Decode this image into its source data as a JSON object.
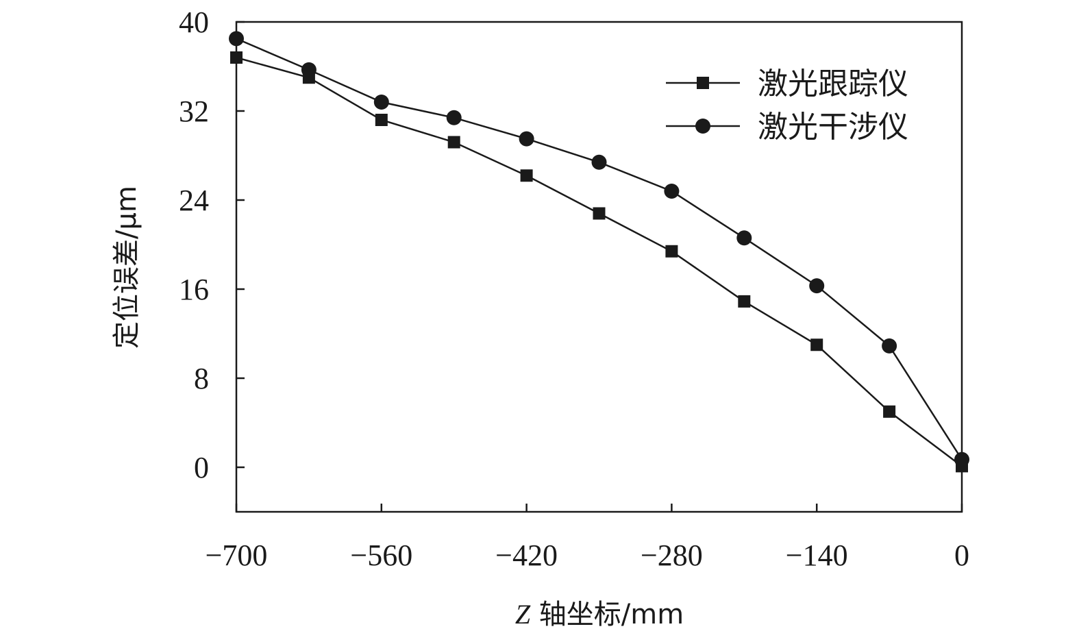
{
  "chart_data": {
    "type": "line",
    "title": "",
    "xlabel": {
      "prefix": "Z",
      "text": " 轴坐标/mm"
    },
    "ylabel": "定位误差/μm",
    "xlim": [
      -700,
      0
    ],
    "ylim": [
      -4,
      40
    ],
    "xticks": [
      -700,
      -560,
      -420,
      -280,
      -140,
      0
    ],
    "xtick_labels": [
      "−700",
      "−560",
      "−420",
      "−280",
      "−140",
      "0"
    ],
    "yticks": [
      0,
      8,
      16,
      24,
      32,
      40
    ],
    "ytick_labels": [
      "0",
      "8",
      "16",
      "24",
      "32",
      "40"
    ],
    "grid": false,
    "legend_position": "top-right",
    "x": [
      -700,
      -630,
      -560,
      -490,
      -420,
      -350,
      -280,
      -210,
      -140,
      -70,
      0
    ],
    "series": [
      {
        "name": "激光跟踪仪",
        "marker": "square",
        "values": [
          36.8,
          35.0,
          31.2,
          29.2,
          26.2,
          22.8,
          19.4,
          14.9,
          11.0,
          5.0,
          0.1
        ]
      },
      {
        "name": "激光干涉仪",
        "marker": "circle",
        "values": [
          38.5,
          35.7,
          32.8,
          31.4,
          29.5,
          27.4,
          24.8,
          20.6,
          16.3,
          10.9,
          0.7
        ]
      }
    ],
    "colors": {
      "ink": "#1a1a1a",
      "background": "#ffffff"
    }
  }
}
